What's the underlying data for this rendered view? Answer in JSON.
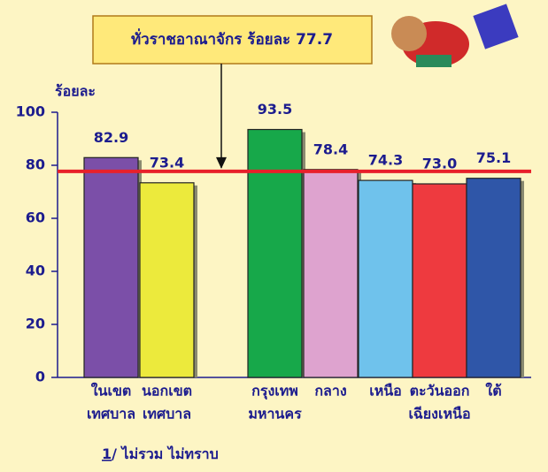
{
  "chart_data": {
    "type": "bar",
    "annotation": "ทั่วราชอาณาจักร ร้อยละ 77.7",
    "y_label": "ร้อยละ",
    "categories": [
      [
        "ในเขต",
        "เทศบาล"
      ],
      [
        "นอกเขต",
        "เทศบาล"
      ],
      [
        "กรุงเทพ",
        "มหานคร"
      ],
      [
        "กลาง"
      ],
      [
        "เหนือ"
      ],
      [
        "ตะวันออก",
        "เฉียงเหนือ"
      ],
      [
        "ใต้"
      ]
    ],
    "values": [
      82.9,
      73.4,
      93.5,
      78.4,
      74.3,
      73.0,
      75.1
    ],
    "value_labels": [
      "82.9",
      "73.4",
      "93.5",
      "78.4",
      "74.3",
      "73.0",
      "75.1"
    ],
    "colors": [
      "#7b4fa8",
      "#ecea3c",
      "#17a84a",
      "#dea3cf",
      "#6fc2ec",
      "#ee3a3f",
      "#2f56a8"
    ],
    "reference_line": {
      "value": 77.7,
      "color": "#e8202a"
    },
    "ylim": [
      0,
      100
    ],
    "yticks": [
      0,
      20,
      40,
      60,
      80,
      100
    ],
    "footnote_ref": "1",
    "footnote": "/ ไม่รวม ไม่ทราบ"
  }
}
